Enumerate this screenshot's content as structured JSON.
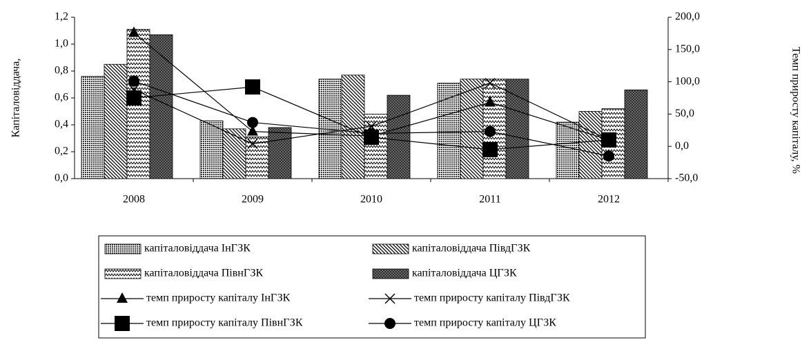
{
  "chart_data": {
    "type": "bar_line",
    "ylabel": "Капіталовіддача,",
    "y2label": "Темп приросту капіталу, %",
    "categories": [
      "2008",
      "2009",
      "2010",
      "2011",
      "2012"
    ],
    "ylim": [
      0,
      1.2
    ],
    "yticks": [
      {
        "value": 0,
        "label": "0,0"
      },
      {
        "value": 0.2,
        "label": "0,2"
      },
      {
        "value": 0.4,
        "label": "0,4"
      },
      {
        "value": 0.6,
        "label": "0,6"
      },
      {
        "value": 0.8,
        "label": "0,8"
      },
      {
        "value": 1.0,
        "label": "1,0"
      },
      {
        "value": 1.2,
        "label": "1,2"
      }
    ],
    "y2lim": [
      -50,
      200
    ],
    "y2ticks": [
      {
        "value": -50,
        "label": "-50,0"
      },
      {
        "value": 0,
        "label": "0,0"
      },
      {
        "value": 50,
        "label": "50,0"
      },
      {
        "value": 100,
        "label": "100,0"
      },
      {
        "value": 150,
        "label": "150,0"
      },
      {
        "value": 200,
        "label": "200,0"
      }
    ],
    "series": [
      {
        "name": "капіталовіддача ІнГЗК",
        "kind": "bar",
        "values": [
          0.76,
          0.43,
          0.74,
          0.71,
          0.42
        ]
      },
      {
        "name": "капіталовіддача ПівдГЗК",
        "kind": "bar",
        "values": [
          0.85,
          0.37,
          0.77,
          0.74,
          0.5
        ]
      },
      {
        "name": "капіталовіддача ПівнГЗК",
        "kind": "bar",
        "values": [
          1.11,
          0.31,
          0.48,
          0.74,
          0.52
        ]
      },
      {
        "name": "капіталовіддача ЦГЗК",
        "kind": "bar",
        "values": [
          1.07,
          0.38,
          0.62,
          0.74,
          0.66
        ]
      },
      {
        "name": "темп приросту капіталу ІнГЗК",
        "kind": "line",
        "axis": "y2",
        "color": "#000000",
        "marker": "triangle",
        "values": [
          176,
          23,
          16,
          68,
          10
        ]
      },
      {
        "name": "темп приросту капіталу ПівдГЗК",
        "kind": "line",
        "axis": "y2",
        "color": "#000000",
        "marker": "x",
        "values": [
          88,
          4,
          31,
          98,
          10
        ]
      },
      {
        "name": "темп приросту капіталу ПівнГЗК",
        "kind": "line",
        "axis": "y2",
        "color": "#000000",
        "marker": "square",
        "values": [
          75,
          92,
          14,
          -5,
          10
        ]
      },
      {
        "name": "темп приросту капіталу ЦГЗК",
        "kind": "line",
        "axis": "y2",
        "color": "#000000",
        "marker": "circle",
        "values": [
          101,
          37,
          20,
          23,
          -15
        ]
      }
    ]
  }
}
